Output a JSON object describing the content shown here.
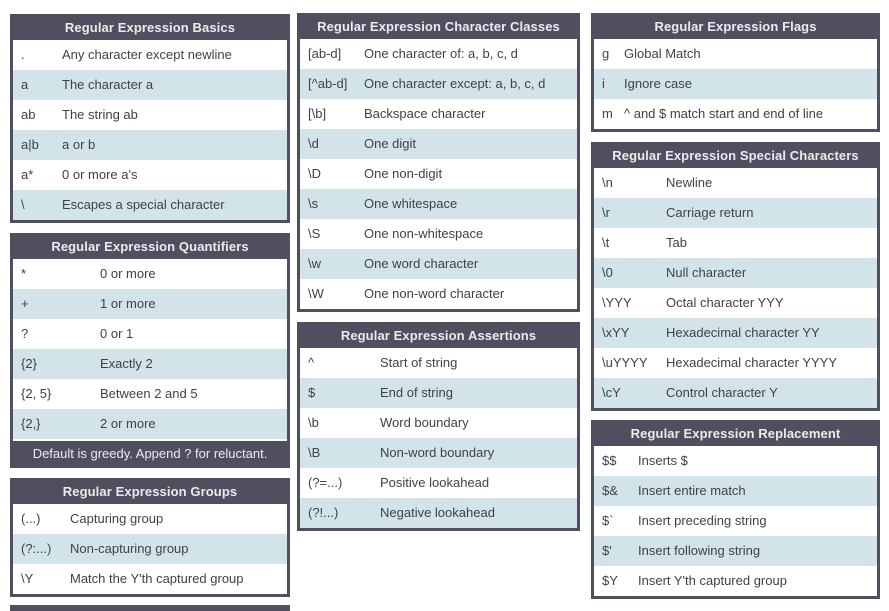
{
  "colors": {
    "header_bg": "#504f60",
    "header_text": "#ebebee",
    "row_bg": "#ffffff",
    "row_alt_bg": "#d3e3ea",
    "row_text": "#3f3f4e",
    "page_bg": "#ffffff"
  },
  "columns": [
    {
      "tables": [
        {
          "title": "Regular Expression Basics",
          "rows": [
            {
              "pattern": ".",
              "description": "Any character except newline"
            },
            {
              "pattern": "a",
              "description": "The character a"
            },
            {
              "pattern": "ab",
              "description": "The string ab"
            },
            {
              "pattern": "a|b",
              "description": "a or b"
            },
            {
              "pattern": "a*",
              "description": "0 or more a's"
            },
            {
              "pattern": "\\",
              "description": "Escapes a special character"
            }
          ]
        },
        {
          "title": "Regular Expression Quantifiers",
          "rows": [
            {
              "pattern": "*",
              "description": "0 or more"
            },
            {
              "pattern": "+",
              "description": "1 or more"
            },
            {
              "pattern": "?",
              "description": "0 or 1"
            },
            {
              "pattern": "{2}",
              "description": "Exactly 2"
            },
            {
              "pattern": "{2, 5}",
              "description": "Between 2 and 5"
            },
            {
              "pattern": "{2,}",
              "description": "2 or more"
            }
          ],
          "footer": "Default is greedy. Append ? for reluctant."
        },
        {
          "title": "Regular Expression Groups",
          "rows": [
            {
              "pattern": "(...)",
              "description": "Capturing group"
            },
            {
              "pattern": "(?:...)",
              "description": "Non-capturing group"
            },
            {
              "pattern": "\\Y",
              "description": "Match the Y'th captured group"
            }
          ]
        },
        {
          "partial": true,
          "title": ""
        }
      ]
    },
    {
      "tables": [
        {
          "title": "Regular Expression Character Classes",
          "rows": [
            {
              "pattern": "[ab-d]",
              "description": "One character of: a, b, c, d"
            },
            {
              "pattern": "[^ab-d]",
              "description": "One character except: a, b, c, d"
            },
            {
              "pattern": "[\\b]",
              "description": "Backspace character"
            },
            {
              "pattern": "\\d",
              "description": "One digit"
            },
            {
              "pattern": "\\D",
              "description": "One non-digit"
            },
            {
              "pattern": "\\s",
              "description": "One whitespace"
            },
            {
              "pattern": "\\S",
              "description": "One non-whitespace"
            },
            {
              "pattern": "\\w",
              "description": "One word character"
            },
            {
              "pattern": "\\W",
              "description": "One non-word character"
            }
          ]
        },
        {
          "title": "Regular Expression Assertions",
          "rows": [
            {
              "pattern": "^",
              "description": "Start of string"
            },
            {
              "pattern": "$",
              "description": "End of string"
            },
            {
              "pattern": "\\b",
              "description": "Word boundary"
            },
            {
              "pattern": "\\B",
              "description": "Non-word boundary"
            },
            {
              "pattern": "(?=...)",
              "description": "Positive lookahead"
            },
            {
              "pattern": "(?!...)",
              "description": "Negative lookahead"
            }
          ]
        }
      ]
    },
    {
      "tables": [
        {
          "title": "Regular Expression Flags",
          "rows": [
            {
              "pattern": "g",
              "description": "Global Match"
            },
            {
              "pattern": "i",
              "description": "Ignore case"
            },
            {
              "pattern": "m",
              "description": "^ and $ match start and end of line"
            }
          ]
        },
        {
          "title": "Regular Expression Special Characters",
          "rows": [
            {
              "pattern": "\\n",
              "description": "Newline"
            },
            {
              "pattern": "\\r",
              "description": "Carriage return"
            },
            {
              "pattern": "\\t",
              "description": "Tab"
            },
            {
              "pattern": "\\0",
              "description": "Null character"
            },
            {
              "pattern": "\\YYY",
              "description": "Octal character YYY"
            },
            {
              "pattern": "\\xYY",
              "description": "Hexadecimal character YY"
            },
            {
              "pattern": "\\uYYYY",
              "description": "Hexadecimal character YYYY"
            },
            {
              "pattern": "\\cY",
              "description": "Control character Y"
            }
          ]
        },
        {
          "title": "Regular Expression Replacement",
          "rows": [
            {
              "pattern": "$$",
              "description": "Inserts $"
            },
            {
              "pattern": "$&",
              "description": "Insert entire match"
            },
            {
              "pattern": "$`",
              "description": "Insert preceding string"
            },
            {
              "pattern": "$'",
              "description": "Insert following string"
            },
            {
              "pattern": "$Y",
              "description": "Insert Y'th captured group"
            }
          ]
        }
      ]
    }
  ]
}
